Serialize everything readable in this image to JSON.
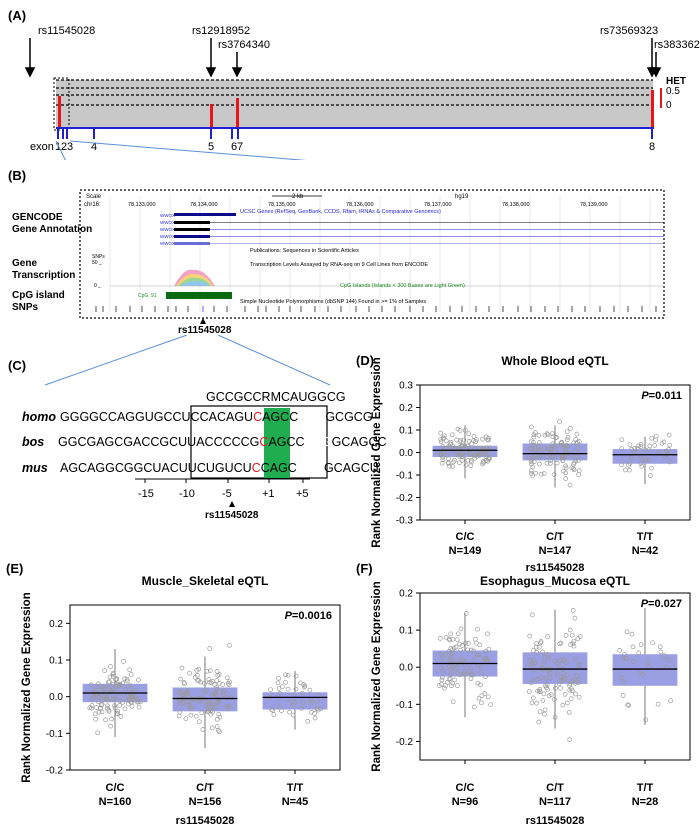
{
  "panelA": {
    "label": "(A)",
    "snps": [
      "rs11545028",
      "rs12918952",
      "rs3764340",
      "rs73569323",
      "rs383362"
    ],
    "legend": {
      "title": "HET",
      "v1": "0.5",
      "v0": "0"
    },
    "exon_label": "exon",
    "exon_numbers": [
      "1",
      "2",
      "3",
      "4",
      "5",
      "6",
      "7",
      "8"
    ]
  },
  "panelB": {
    "label": "(B)",
    "scale_label": "Scale",
    "chr_label": "chr16:",
    "scale_bar": "2 kb",
    "assembly": "hg19",
    "positions": [
      "78,133,000",
      "78,134,000",
      "78,135,000",
      "78,136,000",
      "78,137,000",
      "78,138,000",
      "78,139,000"
    ],
    "track_titles": {
      "gencode": "GENCODE\nGene Annotation",
      "transcription": "Gene\nTranscription",
      "cpg": "CpG island",
      "snps": "SNPs"
    },
    "track_captions": {
      "ucsc": "UCSC Genes (RefSeq, GenBank, CCDS, Rfam, tRNAs & Comparative Genomics)",
      "pubs": "Publications: Sequences in Scientific Articles",
      "rnaseq": "Transcription Levels Assayed by RNA-seq on 9 Cell Lines from ENCODE",
      "cpg": "CpG Islands (Islands < 300 Bases are Light Green)",
      "dbsnp": "Simple Nucleotide Polymorphisms (dbSNP 144) Found in >= 1% of Samples"
    },
    "gene_name": "WWOX",
    "cpg_name": "CpG: 91",
    "snps_small": "SNPs",
    "snps_50": "50 _",
    "snps_0": "0 _",
    "pointer": "rs11545028"
  },
  "panelC": {
    "label": "(C)",
    "consensus": "GCCGCCRMCAUGGCG",
    "species": [
      {
        "name": "homo",
        "pre": "GGGGCCAGGUGCCUCCA",
        "box_pre": "CAGU",
        "snp": "C",
        "box_mid": "AGCC",
        "aug": "AUG",
        "box_post": "GC",
        "post": "GCG"
      },
      {
        "name": "bos",
        "pre": "GGCGAGCGACCGCUUACC",
        "box_pre": "CCCG",
        "snp": "C",
        "box_mid": "AGCC",
        "aug": "AUG",
        "box_post": "GC",
        "post": "AGCC"
      },
      {
        "name": "mus",
        "pre": "AGCAGGCGGCUACUUCU",
        "box_pre": "GUCU",
        "snp": "C",
        "box_mid": "CAGC",
        "aug": "AUG",
        "box_post": "GC",
        "post": "AGCU"
      }
    ],
    "ticks": [
      "-15",
      "-10",
      "-5",
      "+1",
      "+5"
    ],
    "pointer": "rs11545028"
  },
  "boxplots": [
    {
      "label": "(D)",
      "title": "Whole Blood eQTL",
      "p_label": "P",
      "p_value": "=0.011",
      "ylabel": "Rank Normalized Gene Expression",
      "xlabel": "rs11545028",
      "yticks": [
        "0.3",
        "0.2",
        "0.1",
        "0.0",
        "-0.1",
        "-0.2",
        "-0.3"
      ],
      "groups": [
        {
          "geno": "C/C",
          "n": "N=149",
          "q1": -0.02,
          "med": 0.01,
          "q3": 0.03,
          "wlo": -0.115,
          "whi": 0.12
        },
        {
          "geno": "C/T",
          "n": "N=147",
          "q1": -0.035,
          "med": -0.005,
          "q3": 0.04,
          "wlo": -0.155,
          "whi": 0.12
        },
        {
          "geno": "T/T",
          "n": "N=42",
          "q1": -0.05,
          "med": -0.01,
          "q3": 0.015,
          "wlo": -0.14,
          "whi": 0.07
        }
      ],
      "ylim": [
        -0.3,
        0.3
      ]
    },
    {
      "label": "(E)",
      "title": "Muscle_Skeletal eQTL",
      "p_label": "P",
      "p_value": "=0.0016",
      "ylabel": "Rank Normalized Gene Expression",
      "xlabel": "rs11545028",
      "yticks": [
        "0.2",
        "0.1",
        "0.0",
        "-0.1",
        "-0.2"
      ],
      "groups": [
        {
          "geno": "C/C",
          "n": "N=160",
          "q1": -0.015,
          "med": 0.01,
          "q3": 0.035,
          "wlo": -0.11,
          "whi": 0.13
        },
        {
          "geno": "C/T",
          "n": "N=156",
          "q1": -0.04,
          "med": -0.005,
          "q3": 0.025,
          "wlo": -0.14,
          "whi": 0.11
        },
        {
          "geno": "T/T",
          "n": "N=45",
          "q1": -0.035,
          "med": -0.002,
          "q3": 0.012,
          "wlo": -0.09,
          "whi": 0.07
        }
      ],
      "ylim": [
        -0.2,
        0.25
      ]
    },
    {
      "label": "(F)",
      "title": "Esophagus_Mucosa eQTL",
      "p_label": "P",
      "p_value": "=0.027",
      "ylabel": "Rank Normalized Gene Expression",
      "xlabel": "rs11545028",
      "yticks": [
        "0.2",
        "0.1",
        "0.0",
        "-0.1",
        "-0.2"
      ],
      "groups": [
        {
          "geno": "C/C",
          "n": "N=96",
          "q1": -0.025,
          "med": 0.01,
          "q3": 0.045,
          "wlo": -0.135,
          "whi": 0.145
        },
        {
          "geno": "C/T",
          "n": "N=117",
          "q1": -0.045,
          "med": -0.005,
          "q3": 0.04,
          "wlo": -0.165,
          "whi": 0.155
        },
        {
          "geno": "T/T",
          "n": "N=28",
          "q1": -0.05,
          "med": -0.005,
          "q3": 0.035,
          "wlo": -0.155,
          "whi": 0.16
        }
      ],
      "ylim": [
        -0.25,
        0.2
      ]
    }
  ],
  "chart_data": [
    {
      "type": "box",
      "title": "Whole Blood eQTL",
      "categories": [
        "C/C",
        "C/T",
        "T/T"
      ],
      "n": [
        149,
        147,
        42
      ],
      "median": [
        0.01,
        -0.005,
        -0.01
      ],
      "q1": [
        -0.02,
        -0.035,
        -0.05
      ],
      "q3": [
        0.03,
        0.04,
        0.015
      ],
      "p_value": 0.011,
      "xlabel": "rs11545028",
      "ylabel": "Rank Normalized Gene Expression",
      "ylim": [
        -0.3,
        0.3
      ]
    },
    {
      "type": "box",
      "title": "Muscle_Skeletal eQTL",
      "categories": [
        "C/C",
        "C/T",
        "T/T"
      ],
      "n": [
        160,
        156,
        45
      ],
      "median": [
        0.01,
        -0.005,
        -0.002
      ],
      "q1": [
        -0.015,
        -0.04,
        -0.035
      ],
      "q3": [
        0.035,
        0.025,
        0.012
      ],
      "p_value": 0.0016,
      "xlabel": "rs11545028",
      "ylabel": "Rank Normalized Gene Expression",
      "ylim": [
        -0.2,
        0.25
      ]
    },
    {
      "type": "box",
      "title": "Esophagus_Mucosa eQTL",
      "categories": [
        "C/C",
        "C/T",
        "T/T"
      ],
      "n": [
        96,
        117,
        28
      ],
      "median": [
        0.01,
        -0.005,
        -0.005
      ],
      "q1": [
        -0.025,
        -0.045,
        -0.05
      ],
      "q3": [
        0.045,
        0.04,
        0.035
      ],
      "p_value": 0.027,
      "xlabel": "rs11545028",
      "ylabel": "Rank Normalized Gene Expression",
      "ylim": [
        -0.25,
        0.2
      ]
    }
  ],
  "colors": {
    "het_red": "#e8151b",
    "exon_blue": "#1f1fd6",
    "box_fill": "#8f94e0",
    "aug_green": "#1fad4f",
    "snp_red": "#e8151b",
    "cpg_green": "#0b6b12",
    "zoom_line": "#5b8fd6"
  }
}
